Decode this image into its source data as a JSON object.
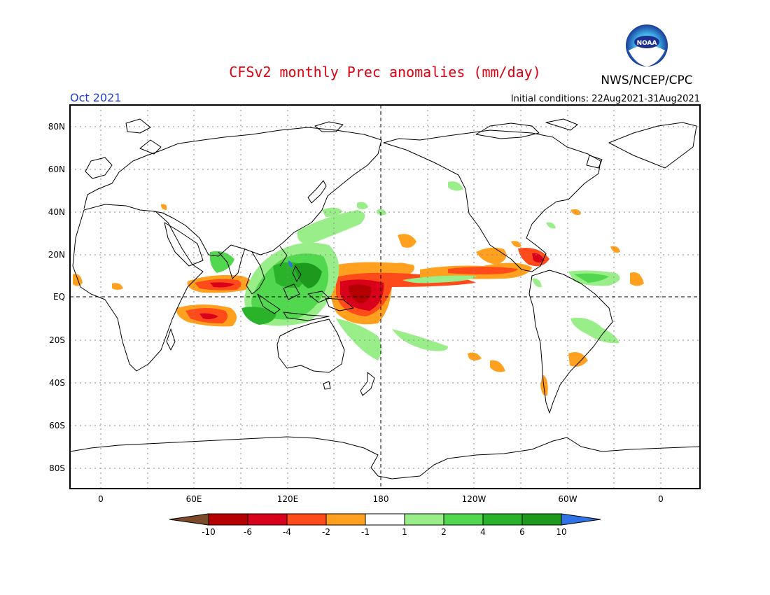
{
  "header": {
    "title": "CFSv2 monthly Prec anomalies (mm/day)",
    "month": "Oct 2021",
    "initial_conditions": "Initial conditions: 22Aug2021-31Aug2021",
    "agency": "NWS/NCEP/CPC",
    "logo_text": "NOAA"
  },
  "axes": {
    "lat_labels": [
      "80N",
      "60N",
      "40N",
      "20N",
      "EQ",
      "20S",
      "40S",
      "60S",
      "80S"
    ],
    "lon_labels": [
      "0",
      "60E",
      "120E",
      "180",
      "120W",
      "60W",
      "0"
    ]
  },
  "colorbar": {
    "labels": [
      "-10",
      "-6",
      "-4",
      "-2",
      "-1",
      "1",
      "2",
      "4",
      "6",
      "10"
    ],
    "colors": [
      "#7a4a2a",
      "#b40000",
      "#d8001a",
      "#ff4a1a",
      "#ffa01e",
      "#ffffff",
      "#9aee8a",
      "#52d84e",
      "#2ab32a",
      "#1d9a1d",
      "#2f73e6"
    ]
  },
  "colors": {
    "title": "#e0000f",
    "month": "#1f3fd6",
    "frame": "#000000",
    "grid": "#888888"
  }
}
